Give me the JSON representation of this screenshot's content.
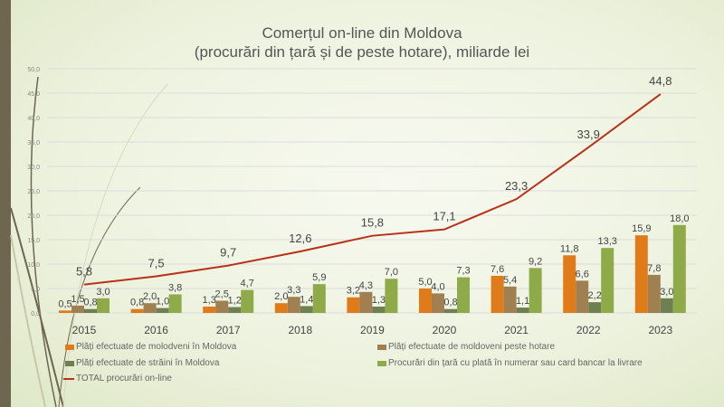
{
  "chart_data": {
    "type": "bar",
    "title": "Comerțul on-line din Moldova",
    "subtitle": "(procurări din țară și de peste hotare), miliarde lei",
    "categories": [
      "2015",
      "2016",
      "2017",
      "2018",
      "2019",
      "2020",
      "2021",
      "2022",
      "2023"
    ],
    "ylim": [
      0,
      50
    ],
    "yticks": [
      "0,0",
      "5,0",
      "10,0",
      "15,0",
      "20,0",
      "25,0",
      "30,0",
      "35,0",
      "40,0",
      "45,0",
      "50,0"
    ],
    "grid": true,
    "legend_position": "bottom",
    "series": [
      {
        "name": "Plăți efectuate de molodveni în Moldova",
        "kind": "bar",
        "color": "#e07b1a",
        "values": [
          0.5,
          0.8,
          1.3,
          2.0,
          3.2,
          5.0,
          7.6,
          11.8,
          15.9
        ],
        "labels": [
          "0,5",
          "0,8",
          "1,3",
          "2,0",
          "3,2",
          "5,0",
          "7,6",
          "11,8",
          "15,9"
        ]
      },
      {
        "name": "Plăți efectuate de moldoveni peste hotare",
        "kind": "bar",
        "color": "#a08050",
        "values": [
          1.5,
          2.0,
          2.5,
          3.3,
          4.3,
          4.0,
          5.4,
          6.6,
          7.8
        ],
        "labels": [
          "1,5",
          "2,0",
          "2,5",
          "3,3",
          "4,3",
          "4,0",
          "5,4",
          "6,6",
          "7,8"
        ]
      },
      {
        "name": "Plăți efectuate de străini în Moldova",
        "kind": "bar",
        "color": "#6e8050",
        "values": [
          0.8,
          1.0,
          1.2,
          1.4,
          1.3,
          0.8,
          1.1,
          2.2,
          3.0
        ],
        "labels": [
          "0,8",
          "1,0",
          "1,2",
          "1,4",
          "1,3",
          "0,8",
          "1,1",
          "2,2",
          "3,0"
        ]
      },
      {
        "name": "Procurări din țară cu plată în numerar sau card bancar la livrare",
        "kind": "bar",
        "color": "#8faa48",
        "values": [
          3.0,
          3.8,
          4.7,
          5.9,
          7.0,
          7.3,
          9.2,
          13.3,
          18.0
        ],
        "labels": [
          "3,0",
          "3,8",
          "4,7",
          "5,9",
          "7,0",
          "7,3",
          "9,2",
          "13,3",
          "18,0"
        ]
      },
      {
        "name": "TOTAL procurări on-line",
        "kind": "line",
        "color": "#b83218",
        "values": [
          5.8,
          7.5,
          9.7,
          12.6,
          15.8,
          17.1,
          23.3,
          33.9,
          44.8
        ],
        "labels": [
          "5,8",
          "7,5",
          "9,7",
          "12,6",
          "15,8",
          "17,1",
          "23,3",
          "33,9",
          "44,8"
        ]
      }
    ]
  }
}
